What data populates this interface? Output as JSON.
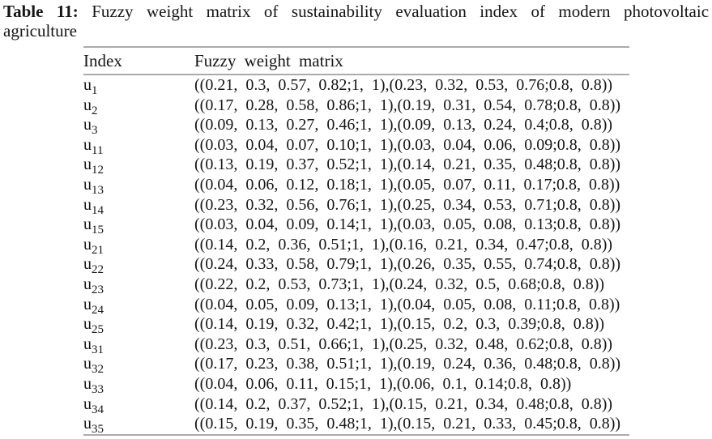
{
  "caption": {
    "label": "Table 11:",
    "line1_rest": "Fuzzy weight matrix of sustainability evaluation index of modern photovoltaic",
    "line2": "agriculture"
  },
  "table": {
    "columns": [
      "Index",
      "Fuzzy weight matrix"
    ],
    "rows": [
      {
        "base": "u",
        "sub": "1",
        "value": "((0.21, 0.3, 0.57, 0.82;1, 1),(0.23, 0.32, 0.53, 0.76;0.8, 0.8))"
      },
      {
        "base": "u",
        "sub": "2",
        "value": "((0.17, 0.28, 0.58, 0.86;1, 1),(0.19, 0.31, 0.54, 0.78;0.8, 0.8))"
      },
      {
        "base": "u",
        "sub": "3",
        "value": "((0.09, 0.13, 0.27, 0.46;1, 1),(0.09, 0.13, 0.24, 0.4;0.8, 0.8))"
      },
      {
        "base": "u",
        "sub": "11",
        "value": "((0.03, 0.04, 0.07, 0.10;1, 1),(0.03, 0.04, 0.06, 0.09;0.8, 0.8))"
      },
      {
        "base": "u",
        "sub": "12",
        "value": "((0.13, 0.19, 0.37, 0.52;1, 1),(0.14, 0.21, 0.35, 0.48;0.8, 0.8))"
      },
      {
        "base": "u",
        "sub": "13",
        "value": "((0.04, 0.06, 0.12, 0.18;1, 1),(0.05, 0.07, 0.11, 0.17;0.8, 0.8))"
      },
      {
        "base": "u",
        "sub": "14",
        "value": "((0.23, 0.32, 0.56, 0.76;1, 1),(0.25, 0.34, 0.53, 0.71;0.8, 0.8))"
      },
      {
        "base": "u",
        "sub": "15",
        "value": "((0.03, 0.04, 0.09, 0.14;1, 1),(0.03, 0.05, 0.08, 0.13;0.8, 0.8))"
      },
      {
        "base": "u",
        "sub": "21",
        "value": "((0.14, 0.2, 0.36, 0.51;1, 1),(0.16, 0.21, 0.34, 0.47;0.8, 0.8))"
      },
      {
        "base": "u",
        "sub": "22",
        "value": "((0.24, 0.33, 0.58, 0.79;1, 1),(0.26, 0.35, 0.55, 0.74;0.8, 0.8))"
      },
      {
        "base": "u",
        "sub": "23",
        "value": "((0.22, 0.2, 0.53, 0.73;1, 1),(0.24, 0.32, 0.5, 0.68;0.8, 0.8))"
      },
      {
        "base": "u",
        "sub": "24",
        "value": "((0.04, 0.05, 0.09, 0.13;1, 1),(0.04, 0.05, 0.08, 0.11;0.8, 0.8))"
      },
      {
        "base": "u",
        "sub": "25",
        "value": "((0.14, 0.19, 0.32, 0.42;1, 1),(0.15, 0.2, 0.3, 0.39;0.8, 0.8))"
      },
      {
        "base": "u",
        "sub": "31",
        "value": "((0.23, 0.3, 0.51, 0.66;1, 1),(0.25, 0.32, 0.48, 0.62;0.8, 0.8))"
      },
      {
        "base": "u",
        "sub": "32",
        "value": "((0.17, 0.23, 0.38, 0.51;1, 1),(0.19, 0.24, 0.36, 0.48;0.8, 0.8))"
      },
      {
        "base": "u",
        "sub": "33",
        "value": "((0.04, 0.06, 0.11, 0.15;1, 1),(0.06, 0.1, 0.14;0.8, 0.8))"
      },
      {
        "base": "u",
        "sub": "34",
        "value": "((0.14, 0.2, 0.37, 0.52;1, 1),(0.15, 0.21, 0.34, 0.48;0.8, 0.8))"
      },
      {
        "base": "u",
        "sub": "35",
        "value": "((0.15, 0.19, 0.35, 0.48;1, 1),(0.15, 0.21, 0.33, 0.45;0.8, 0.8))"
      }
    ]
  }
}
